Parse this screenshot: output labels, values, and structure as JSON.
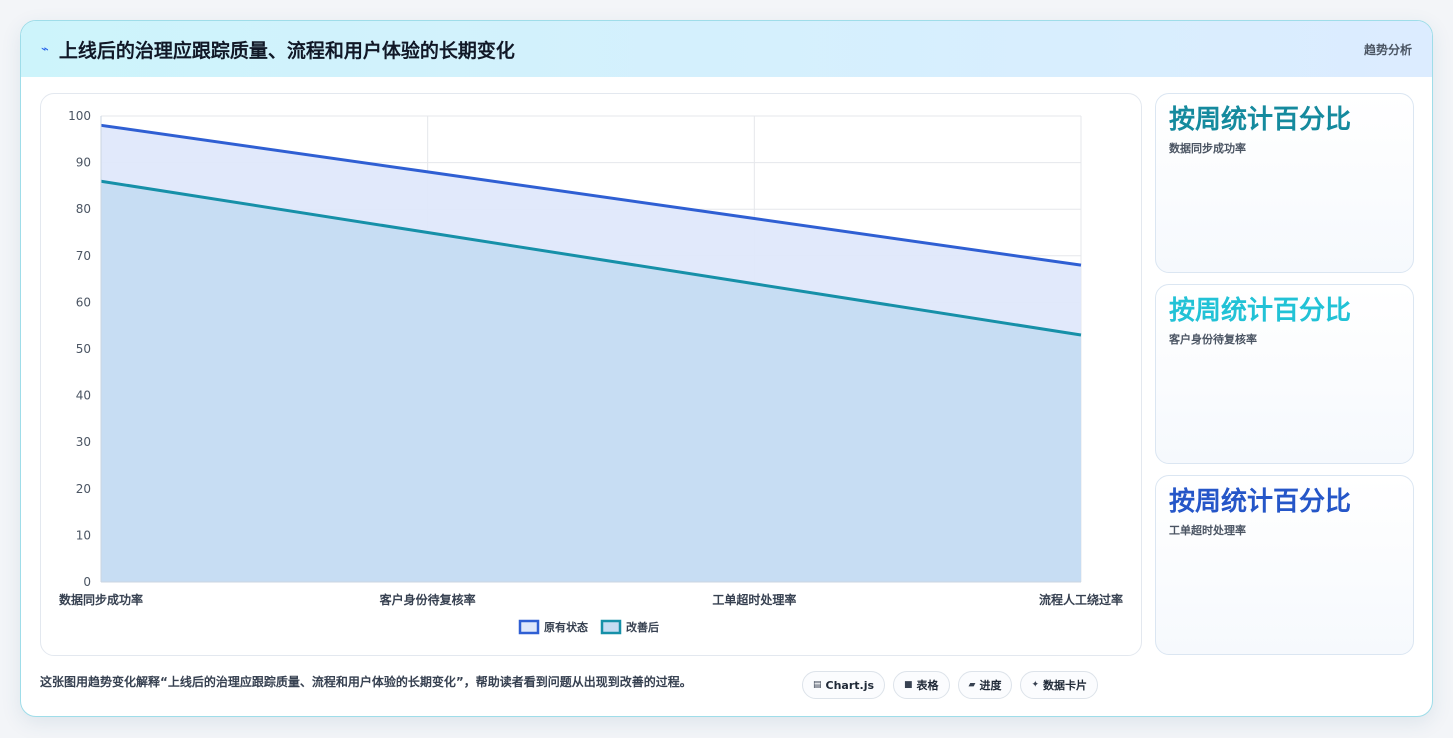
{
  "header": {
    "title": "上线后的治理应跟踪质量、流程和用户体验的长期变化",
    "tag": "趋势分析",
    "icon": "bolt-icon"
  },
  "chart_data": {
    "type": "area",
    "categories": [
      "数据同步成功率",
      "客户身份待复核率",
      "工单超时处理率",
      "流程人工绕过率"
    ],
    "series": [
      {
        "name": "原有状态",
        "values": [
          98,
          88,
          78,
          68
        ],
        "color": "#2f5fd3",
        "fill": "#dfe8fb"
      },
      {
        "name": "改善后",
        "values": [
          86,
          75,
          64,
          53
        ],
        "color": "#1690a8",
        "fill": "#c5dcf2"
      }
    ],
    "ylim": [
      0,
      100
    ],
    "yticks": [
      0,
      10,
      20,
      30,
      40,
      50,
      60,
      70,
      80,
      90,
      100
    ],
    "grid": true,
    "legend": "bottom"
  },
  "side_cards": [
    {
      "title": "按周统计百分比",
      "subtitle": "数据同步成功率",
      "color": "#158a9e"
    },
    {
      "title": "按周统计百分比",
      "subtitle": "客户身份待复核率",
      "color": "#22c2d6"
    },
    {
      "title": "按周统计百分比",
      "subtitle": "工单超时处理率",
      "color": "#2556c8"
    }
  ],
  "footer": {
    "text": "这张图用趋势变化解释“上线后的治理应跟踪质量、流程和用户体验的长期变化”，帮助读者看到问题从出现到改善的过程。",
    "chips": [
      {
        "icon": "chart-icon",
        "label": "Chart.js"
      },
      {
        "icon": "table-icon",
        "label": "表格"
      },
      {
        "icon": "progress-icon",
        "label": "进度"
      },
      {
        "icon": "sparkle-icon",
        "label": "数据卡片"
      }
    ]
  }
}
